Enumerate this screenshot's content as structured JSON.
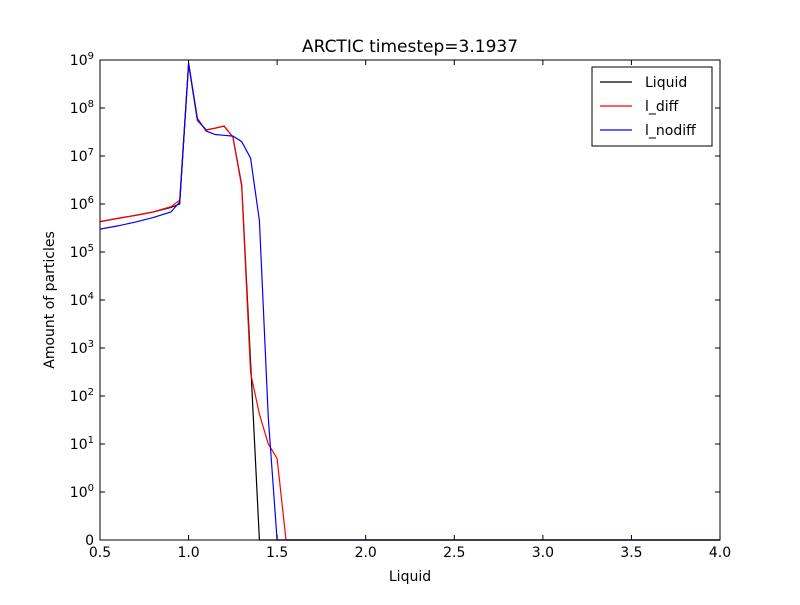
{
  "chart_data": {
    "type": "line",
    "title": "ARCTIC timestep=3.1937",
    "xlabel": "Liquid",
    "ylabel": "Amount of particles",
    "xlim": [
      0.5,
      4.0
    ],
    "yscale": "symlog",
    "ylim": [
      0,
      1000000000
    ],
    "x_ticks": [
      "0.5",
      "1.0",
      "1.5",
      "2.0",
      "2.5",
      "3.0",
      "3.5",
      "4.0"
    ],
    "y_ticks": [
      {
        "value": 0,
        "label": "0"
      },
      {
        "value": 1,
        "label": "10^0"
      },
      {
        "value": 10,
        "label": "10^1"
      },
      {
        "value": 100,
        "label": "10^2"
      },
      {
        "value": 1000,
        "label": "10^3"
      },
      {
        "value": 10000,
        "label": "10^4"
      },
      {
        "value": 100000,
        "label": "10^5"
      },
      {
        "value": 1000000,
        "label": "10^6"
      },
      {
        "value": 10000000,
        "label": "10^7"
      },
      {
        "value": 100000000,
        "label": "10^8"
      },
      {
        "value": 1000000000,
        "label": "10^9"
      }
    ],
    "legend_position": "top-right",
    "grid": false,
    "series": [
      {
        "name": "Liquid",
        "color": "#000000",
        "x": [
          0.5,
          0.6,
          0.7,
          0.8,
          0.9,
          0.95,
          1.0,
          1.05,
          1.1,
          1.15,
          1.2,
          1.25,
          1.3,
          1.35,
          1.4,
          1.45,
          1.5,
          1.55,
          2.0,
          2.5,
          3.0,
          3.5,
          4.0
        ],
        "y": [
          430000,
          500000,
          580000,
          680000,
          850000,
          1000000,
          850000000,
          55000000,
          35000000,
          38000000,
          42000000,
          25000000,
          2500000,
          500,
          0,
          0,
          0,
          0,
          0,
          0,
          0,
          0,
          0
        ]
      },
      {
        "name": "l_diff",
        "color": "#ff0000",
        "x": [
          0.5,
          0.6,
          0.7,
          0.8,
          0.9,
          0.95,
          1.0,
          1.05,
          1.1,
          1.15,
          1.2,
          1.25,
          1.3,
          1.35,
          1.4,
          1.45,
          1.5,
          1.55,
          2.0,
          2.5,
          3.0,
          3.5,
          4.0
        ],
        "y": [
          430000,
          500000,
          580000,
          680000,
          880000,
          1200000,
          850000000,
          55000000,
          35000000,
          38000000,
          42000000,
          25000000,
          2300000,
          300,
          42,
          10,
          5,
          0,
          0,
          0,
          0,
          0,
          0
        ]
      },
      {
        "name": "l_nodiff",
        "color": "#0000ff",
        "x": [
          0.5,
          0.6,
          0.7,
          0.8,
          0.9,
          0.95,
          1.0,
          1.05,
          1.1,
          1.15,
          1.2,
          1.25,
          1.3,
          1.35,
          1.4,
          1.45,
          1.5,
          1.55,
          2.0,
          2.5,
          3.0,
          3.5,
          4.0
        ],
        "y": [
          300000,
          350000,
          420000,
          520000,
          680000,
          1100000,
          850000000,
          60000000,
          33000000,
          28000000,
          27000000,
          26000000,
          20000000,
          9000000,
          450000,
          35,
          0,
          0,
          0,
          0,
          0,
          0,
          0
        ]
      }
    ]
  }
}
